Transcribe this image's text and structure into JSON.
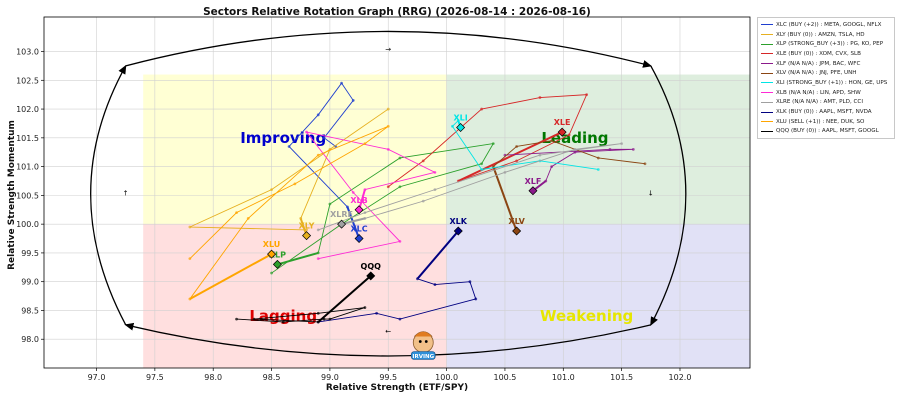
{
  "chart_data": {
    "type": "scatter",
    "title": "Sectors Relative Rotation Graph (RRG) (2026-08-14 : 2026-08-16)",
    "xlabel": "Relative Strength (ETF/SPY)",
    "ylabel": "Relative Strength Momentum",
    "xlim": [
      96.55,
      102.6
    ],
    "ylim": [
      97.5,
      103.6
    ],
    "xticks": [
      "97.0",
      "97.5",
      "98.0",
      "98.5",
      "99.0",
      "99.5",
      "100.0",
      "100.5",
      "101.0",
      "101.5",
      "102.0"
    ],
    "yticks": [
      "98.0",
      "98.5",
      "99.0",
      "99.5",
      "100.0",
      "100.5",
      "101.0",
      "101.5",
      "102.0",
      "102.5",
      "103.0"
    ],
    "grid": true,
    "legend_position": "outside-right",
    "quadrants": {
      "improving": {
        "label": "Improving",
        "color": "#0000cc",
        "fill": "#ffffcc"
      },
      "leading": {
        "label": "Leading",
        "color": "#007700",
        "fill": "#d8ebd8"
      },
      "lagging": {
        "label": "Lagging",
        "color": "#dd0000",
        "fill": "#ffd9d9"
      },
      "weakening": {
        "label": "Weakening",
        "color": "#e6e600",
        "fill": "#dcdcf5"
      }
    },
    "quadrant_bounds": {
      "x": [
        97.4,
        100.0,
        102.6
      ],
      "y": [
        97.5,
        100.0,
        102.6
      ]
    },
    "series": [
      {
        "name": "XLC (BUY (+2)) : META, GOOGL, NFLX",
        "symbol": "XLC",
        "color": "#1f3fcf",
        "x": [
          99.05,
          98.95,
          99.2,
          99.1,
          98.9,
          98.65,
          99.15,
          99.25
        ],
        "y": [
          101.35,
          101.5,
          102.15,
          102.45,
          101.9,
          101.35,
          100.3,
          99.75
        ]
      },
      {
        "name": "XLY (BUY (0)) : AMZN, TSLA, HD",
        "symbol": "XLY",
        "color": "#e6b020",
        "x": [
          98.8,
          97.8,
          98.5,
          99.5,
          99.0,
          98.75,
          98.8
        ],
        "y": [
          99.9,
          99.95,
          100.6,
          102.0,
          101.3,
          100.1,
          99.8
        ]
      },
      {
        "name": "XLP (STRONG_BUY (+3)) : PG, KO, PEP",
        "symbol": "XLP",
        "color": "#2ca02c",
        "x": [
          98.5,
          99.1,
          99.6,
          100.3,
          100.4,
          99.6,
          99.0,
          98.9,
          98.55
        ],
        "y": [
          99.15,
          100.0,
          100.65,
          101.05,
          101.4,
          101.15,
          100.35,
          99.5,
          99.3
        ]
      },
      {
        "name": "XLE (BUY (0)) : XOM, CVX, SLB",
        "symbol": "XLE",
        "color": "#d62728",
        "x": [
          99.5,
          99.8,
          100.3,
          100.8,
          101.2,
          101.05,
          100.6,
          100.1,
          100.99
        ],
        "y": [
          100.65,
          101.1,
          102.0,
          102.2,
          102.25,
          101.55,
          101.1,
          100.75,
          101.6
        ]
      },
      {
        "name": "XLF (N/A N/A) : JPM, BAC, WFC",
        "symbol": "XLF",
        "color": "#8b1a8b",
        "x": [
          100.5,
          101.4,
          101.6,
          101.1,
          100.9,
          100.85,
          100.74
        ],
        "y": [
          101.2,
          101.3,
          101.3,
          101.25,
          101.0,
          100.75,
          100.58
        ]
      },
      {
        "name": "XLV (N/A N/A) : JNJ, PFE, UNH",
        "symbol": "XLV",
        "color": "#8b4513",
        "x": [
          101.7,
          101.3,
          100.9,
          100.6,
          100.4,
          100.6
        ],
        "y": [
          101.05,
          101.15,
          101.45,
          101.35,
          101.0,
          99.88
        ]
      },
      {
        "name": "XLI (STRONG_BUY (+1)) : HON, GE, UPS",
        "symbol": "XLI",
        "color": "#00e5e5",
        "x": [
          101.3,
          100.8,
          100.3,
          100.05,
          100.1,
          100.12
        ],
        "y": [
          100.95,
          101.1,
          100.95,
          101.7,
          101.8,
          101.68
        ]
      },
      {
        "name": "XLB (N/A N/A) : LIN, APD, SHW",
        "symbol": "XLB",
        "color": "#ff2ad4",
        "x": [
          98.9,
          99.6,
          99.2,
          98.8,
          99.5,
          99.9,
          99.3,
          99.25
        ],
        "y": [
          99.4,
          99.7,
          100.55,
          101.6,
          101.3,
          100.9,
          100.6,
          100.25
        ]
      },
      {
        "name": "XLRE (N/A N/A) : AMT, PLD, CCI",
        "symbol": "XLRE",
        "color": "#a0a0a0",
        "x": [
          98.9,
          99.3,
          99.9,
          100.8,
          101.5,
          101.1,
          100.5,
          99.8,
          99.3,
          99.1
        ],
        "y": [
          99.9,
          100.2,
          100.6,
          101.2,
          101.4,
          101.3,
          100.9,
          100.4,
          100.1,
          100.0
        ]
      },
      {
        "name": "XLK (BUY (0)) : AAPL, MSFT, NVDA",
        "symbol": "XLK",
        "color": "#000080",
        "x": [
          98.9,
          99.4,
          99.6,
          100.25,
          100.2,
          99.9,
          99.75,
          100.1
        ],
        "y": [
          98.3,
          98.45,
          98.35,
          98.7,
          99.0,
          98.95,
          99.05,
          99.88
        ]
      },
      {
        "name": "XLU (SELL (+1)) : NEE, DUK, SO",
        "symbol": "XLU",
        "color": "#ffa500",
        "x": [
          97.8,
          98.2,
          98.7,
          99.3,
          99.5,
          98.9,
          98.3,
          97.8,
          98.5
        ],
        "y": [
          99.4,
          100.2,
          100.7,
          101.4,
          101.7,
          101.2,
          100.1,
          98.7,
          99.48
        ]
      },
      {
        "name": "QQQ (BUY (0)) : AAPL, MSFT, GOOGL",
        "symbol": "QQQ",
        "color": "#000000",
        "x": [
          98.2,
          98.6,
          98.95,
          99.0,
          99.3,
          98.9,
          98.35,
          98.9,
          99.35
        ],
        "y": [
          98.35,
          98.3,
          98.35,
          98.35,
          98.55,
          98.45,
          98.35,
          98.3,
          99.1
        ]
      }
    ]
  },
  "legend": {
    "items": [
      "XLC (BUY (+2)) : META, GOOGL, NFLX",
      "XLY (BUY (0)) : AMZN, TSLA, HD",
      "XLP (STRONG_BUY (+3)) : PG, KO, PEP",
      "XLE (BUY (0)) : XOM, CVX, SLB",
      "XLF (N/A N/A) : JPM, BAC, WFC",
      "XLV (N/A N/A) : JNJ, PFE, UNH",
      "XLI (STRONG_BUY (+1)) : HON, GE, UPS",
      "XLB (N/A N/A) : LIN, APD, SHW",
      "XLRE (N/A N/A) : AMT, PLD, CCI",
      "XLK (BUY (0)) : AAPL, MSFT, NVDA",
      "XLU (SELL (+1)) : NEE, DUK, SO",
      "QQQ (BUY (0)) : AAPL, MSFT, GOOGL"
    ],
    "colors": [
      "#1f3fcf",
      "#e6b020",
      "#2ca02c",
      "#d62728",
      "#8b1a8b",
      "#8b4513",
      "#00e5e5",
      "#ff2ad4",
      "#a0a0a0",
      "#000080",
      "#ffa500",
      "#000000"
    ]
  },
  "watermark_text": "IRVING"
}
